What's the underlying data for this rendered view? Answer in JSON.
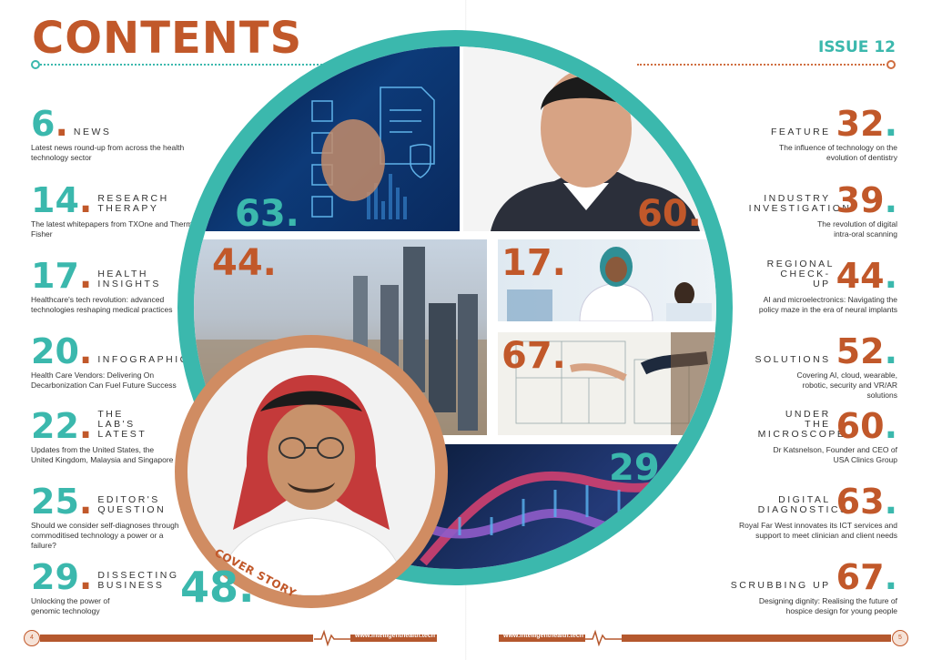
{
  "header": {
    "title": "CONTENTS",
    "issue": "ISSUE 12"
  },
  "left_entries": [
    {
      "num": "6",
      "label": "NEWS",
      "desc": "Latest news round-up from across the health technology sector"
    },
    {
      "num": "14",
      "label": "RESEARCH THERAPY",
      "desc": "The latest whitepapers from TXOne and Thermo Fisher"
    },
    {
      "num": "17",
      "label": "HEALTH INSIGHTS",
      "desc": "Healthcare's tech revolution: advanced technologies reshaping medical practices"
    },
    {
      "num": "20",
      "label": "INFOGRAPHIC",
      "desc": "Health Care Vendors: Delivering On Decarbonization Can Fuel Future Success"
    },
    {
      "num": "22",
      "label": "THE LAB'S LATEST",
      "desc": "Updates from the United States, the United Kingdom, Malaysia and Singapore"
    },
    {
      "num": "25",
      "label": "EDITOR'S QUESTION",
      "desc": "Should we consider self-diagnoses through commoditised technology a power or a failure?"
    },
    {
      "num": "29",
      "label": "DISSECTING BUSINESS",
      "desc": "Unlocking the power of genomic technology"
    }
  ],
  "right_entries": [
    {
      "num": "32",
      "label": "FEATURE",
      "desc": "The influence of technology on the evolution of dentistry"
    },
    {
      "num": "39",
      "label": "INDUSTRY INVESTIGATION",
      "desc": "The revolution of digital intra-oral scanning"
    },
    {
      "num": "44",
      "label": "REGIONAL CHECK-UP",
      "desc": "AI and microelectronics: Navigating the policy maze in the era of neural implants"
    },
    {
      "num": "52",
      "label": "SOLUTIONS",
      "desc": "Covering AI, cloud, wearable, robotic, security and VR/AR solutions"
    },
    {
      "num": "60",
      "label": "UNDER THE MICROSCOPE",
      "desc": "Dr Katsnelson, Founder and CEO of USA Clinics Group"
    },
    {
      "num": "63",
      "label": "DIGITAL DIAGNOSTICS",
      "desc": "Royal Far West innovates its ICT services and support to meet clinician and client needs"
    },
    {
      "num": "67",
      "label": "SCRUBBING UP",
      "desc": "Designing dignity: Realising the future of hospice design for young people"
    }
  ],
  "photos": {
    "tech": "63.",
    "portrait": "60.",
    "city": "44.",
    "doctor": "17.",
    "plans": "67.",
    "dna": "29.",
    "cover_num": "48.",
    "cover_label": "COVER STORY"
  },
  "footer": {
    "left_page": "4",
    "right_page": "5",
    "url_left": "www.intelligenthealth.tech",
    "url_right": "www.intelligenthealth.tech"
  },
  "colors": {
    "accent": "#c1582a",
    "teal": "#3bb8ad"
  }
}
